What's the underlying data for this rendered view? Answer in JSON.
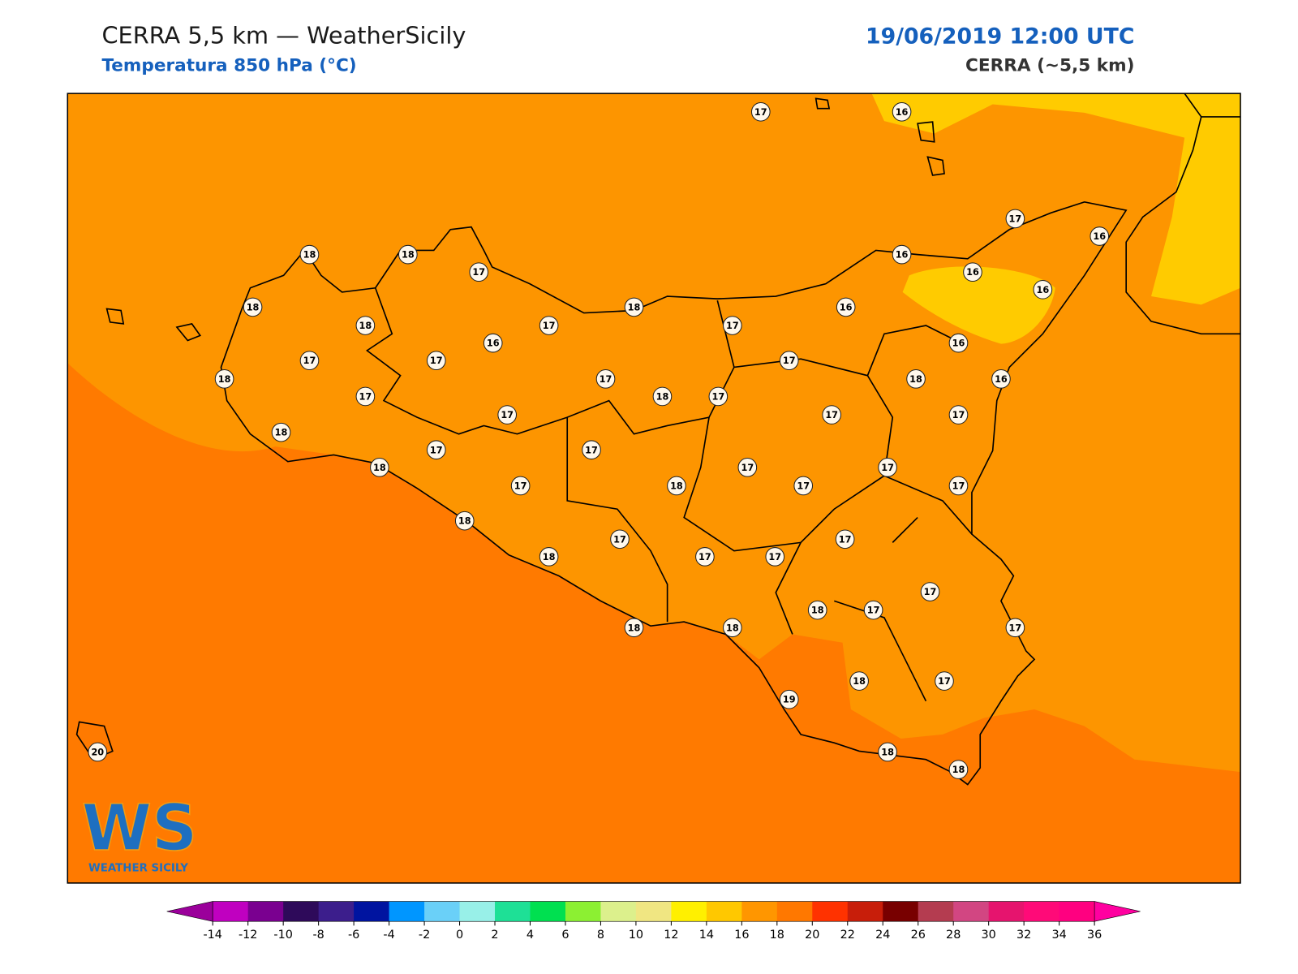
{
  "header": {
    "title": "CERRA 5,5 km — WeatherSicily",
    "subtitle": "Temperatura 850 hPa (°C)",
    "date": "19/06/2019 12:00 UTC",
    "model": "CERRA (~5,5 km)"
  },
  "stations": [
    17,
    16,
    18,
    18,
    17,
    17,
    16,
    16,
    16,
    16,
    18,
    18,
    17,
    18,
    17,
    16,
    17,
    17,
    16,
    17,
    16,
    18,
    17,
    17,
    18,
    17,
    18,
    16,
    17,
    17,
    17,
    18,
    17,
    17,
    18,
    17,
    17,
    17,
    18,
    17,
    17,
    18,
    17,
    17,
    18,
    17,
    17,
    17,
    18,
    17,
    18,
    18,
    17,
    19,
    18,
    17,
    20,
    18,
    18
  ],
  "colorbar": {
    "ticks": [
      -14,
      -12,
      -10,
      -8,
      -6,
      -4,
      -2,
      0,
      2,
      4,
      6,
      8,
      10,
      12,
      14,
      16,
      18,
      20,
      22,
      24,
      26,
      28,
      30,
      32,
      34,
      36
    ],
    "colors": [
      "#c000c0",
      "#7a0090",
      "#2e0a5a",
      "#3c1e8c",
      "#0014a0",
      "#0096ff",
      "#6ad0f8",
      "#98f0e8",
      "#1ee096",
      "#00e050",
      "#8cf032",
      "#dcf08c",
      "#f0e682",
      "#fff000",
      "#ffc800",
      "#ff9600",
      "#ff7800",
      "#ff3200",
      "#c81e0a",
      "#780000",
      "#b43c50",
      "#d24682",
      "#e6146e",
      "#ff0a78",
      "#ff0080"
    ],
    "under_color": "#9b009b",
    "over_color": "#ff00a0"
  },
  "logo": {
    "mark": "WS",
    "text": "WEATHER SICILY"
  }
}
